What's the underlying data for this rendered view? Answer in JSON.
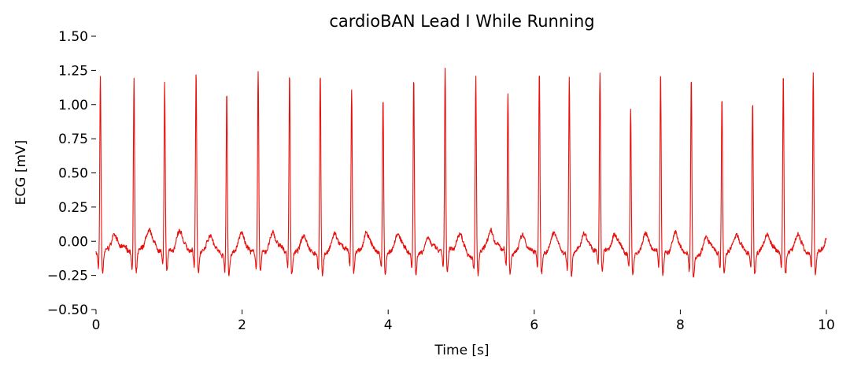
{
  "chart_data": {
    "type": "line",
    "title": "cardioBAN Lead I While Running",
    "xlabel": "Time [s]",
    "ylabel": "ECG [mV]",
    "xlim": [
      0,
      10
    ],
    "ylim": [
      -0.5,
      1.5
    ],
    "xticks": [
      0,
      2,
      4,
      6,
      8,
      10
    ],
    "xtick_labels": [
      "0",
      "2",
      "4",
      "6",
      "8",
      "10"
    ],
    "yticks": [
      -0.5,
      -0.25,
      0,
      0.25,
      0.5,
      0.75,
      1.0,
      1.25,
      1.5
    ],
    "ytick_labels": [
      "−0.50",
      "−0.25",
      "0.00",
      "0.25",
      "0.50",
      "0.75",
      "1.00",
      "1.25",
      "1.50"
    ],
    "grid": false,
    "series": [
      {
        "name": "Lead I",
        "color": "#e8100c",
        "baseline_mV": -0.08,
        "r_peak_times_s": [
          0.06,
          0.52,
          0.94,
          1.37,
          1.79,
          2.22,
          2.65,
          3.07,
          3.5,
          3.93,
          4.35,
          4.78,
          5.2,
          5.64,
          6.07,
          6.48,
          6.9,
          7.32,
          7.73,
          8.15,
          8.57,
          8.99,
          9.41,
          9.82
        ],
        "r_peak_values_mV": [
          1.21,
          1.2,
          1.13,
          1.25,
          1.12,
          1.25,
          1.25,
          1.25,
          1.12,
          1.04,
          1.22,
          1.25,
          1.23,
          1.07,
          1.25,
          1.25,
          1.23,
          0.97,
          1.25,
          1.25,
          1.06,
          1.02,
          1.24,
          1.25
        ]
      }
    ]
  }
}
